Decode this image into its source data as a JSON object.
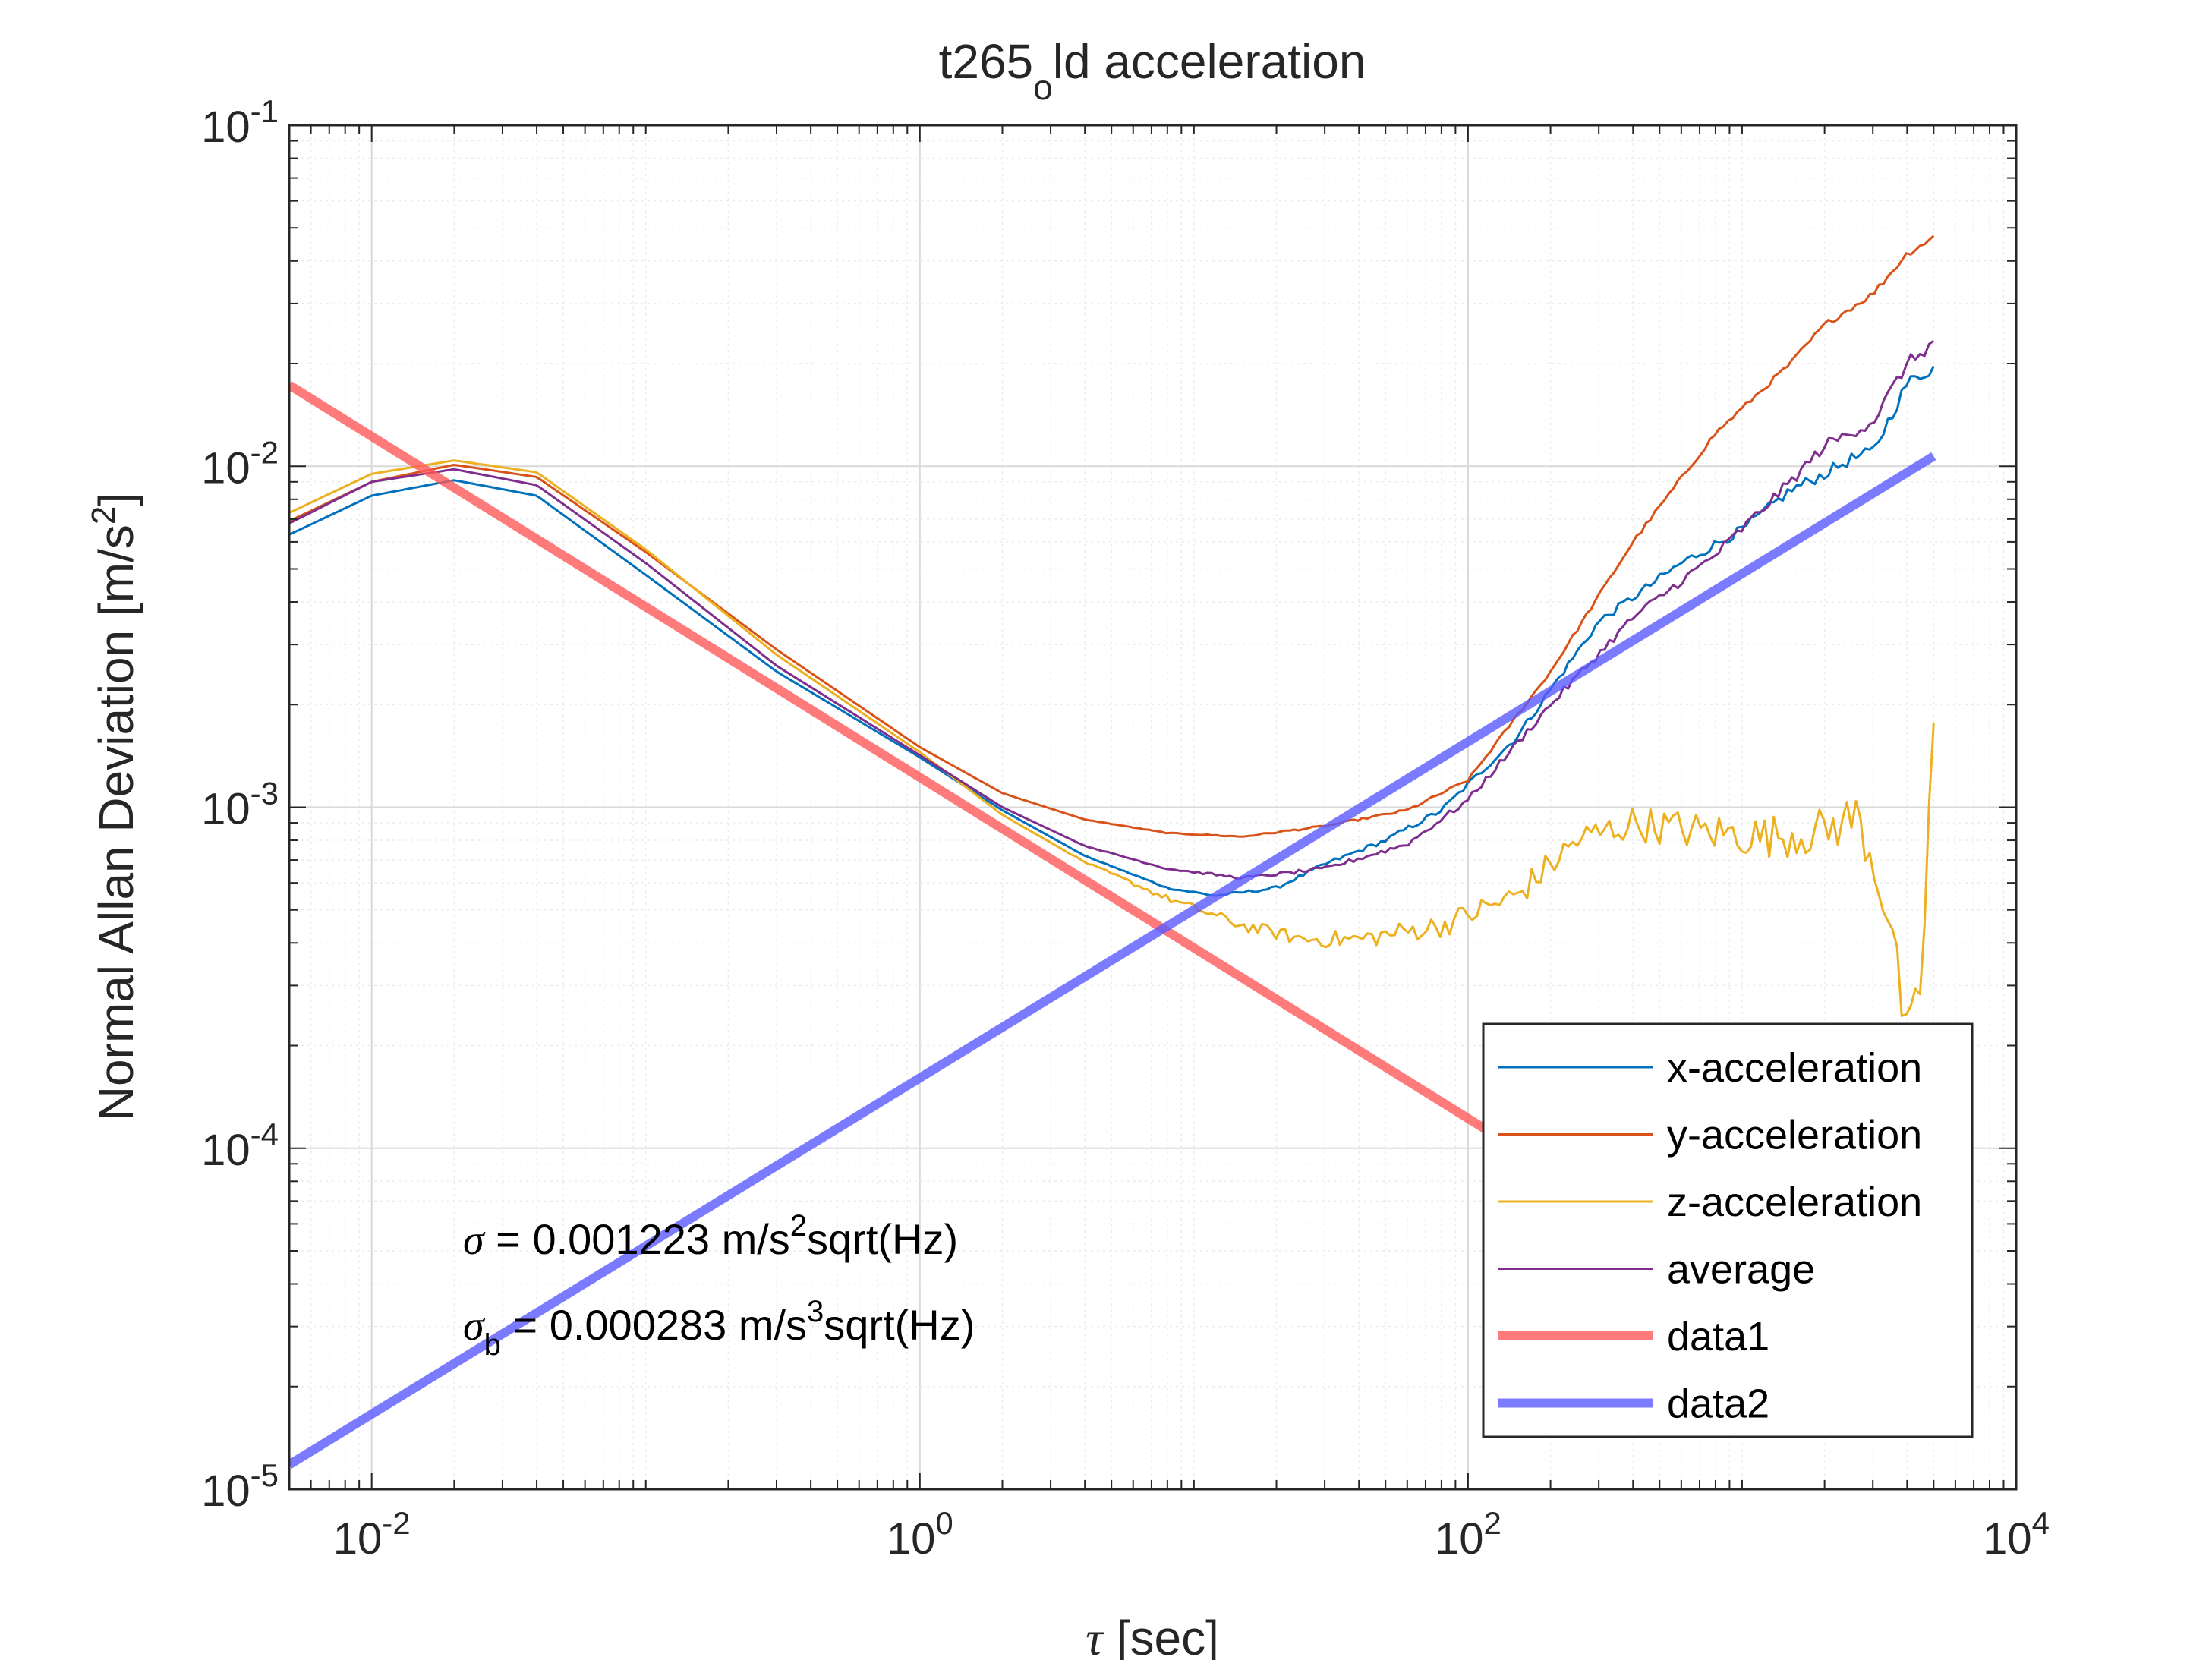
{
  "chart_data": {
    "type": "line",
    "title_parts": {
      "main": "t265",
      "sub": "o",
      "rest": "ld acceleration"
    },
    "xlabel": {
      "symbol": "τ",
      "unit": " [sec]"
    },
    "ylabel": {
      "text": "Normal Allan Deviation [m/s",
      "sup": "2",
      "close": "]"
    },
    "x_scale": "log",
    "y_scale": "log",
    "xlim": [
      0.005,
      10000
    ],
    "ylim": [
      1e-05,
      0.1
    ],
    "grid": true,
    "minor_grid": true,
    "legend_placement": "bottom-right",
    "x_ticks": [
      {
        "value": 0.01,
        "base": "10",
        "exp": "-2"
      },
      {
        "value": 1,
        "base": "10",
        "exp": "0"
      },
      {
        "value": 100,
        "base": "10",
        "exp": "2"
      },
      {
        "value": 10000,
        "base": "10",
        "exp": "4"
      }
    ],
    "y_ticks": [
      {
        "value": 0.1,
        "base": "10",
        "exp": "-1"
      },
      {
        "value": 0.01,
        "base": "10",
        "exp": "-2"
      },
      {
        "value": 0.001,
        "base": "10",
        "exp": "-3"
      },
      {
        "value": 0.0001,
        "base": "10",
        "exp": "-4"
      },
      {
        "value": 1e-05,
        "base": "10",
        "exp": "-5"
      }
    ],
    "series": [
      {
        "name": "x-acceleration",
        "color": "#0072BD",
        "width": 3,
        "opacity": 1,
        "x": [
          0.005,
          0.01,
          0.02,
          0.04,
          0.1,
          0.3,
          1,
          2,
          4,
          8,
          12,
          20,
          30,
          50,
          80,
          150,
          300,
          600,
          1000,
          1500,
          2000,
          2500,
          3000,
          4000,
          5000
        ],
        "y": [
          0.0063,
          0.0082,
          0.0091,
          0.0082,
          0.0048,
          0.0025,
          0.0014,
          0.00098,
          0.00072,
          0.00058,
          0.00055,
          0.00058,
          0.00068,
          0.0008,
          0.00098,
          0.0016,
          0.0035,
          0.0052,
          0.0065,
          0.0085,
          0.0095,
          0.0105,
          0.011,
          0.0175,
          0.0195
        ],
        "jitter": 0.02
      },
      {
        "name": "y-acceleration",
        "color": "#D95319",
        "width": 3,
        "opacity": 1,
        "x": [
          0.005,
          0.01,
          0.02,
          0.04,
          0.1,
          0.3,
          1,
          2,
          4,
          8,
          15,
          30,
          60,
          100,
          200,
          400,
          800,
          1500,
          2000,
          3000,
          4000,
          5000
        ],
        "y": [
          0.0069,
          0.009,
          0.0101,
          0.0093,
          0.0056,
          0.0029,
          0.0015,
          0.0011,
          0.00092,
          0.00084,
          0.00082,
          0.00088,
          0.00098,
          0.0012,
          0.0025,
          0.006,
          0.0125,
          0.02,
          0.026,
          0.032,
          0.042,
          0.047
        ],
        "jitter": 0.01
      },
      {
        "name": "z-acceleration",
        "color": "#EDB120",
        "width": 3,
        "opacity": 1,
        "x": [
          0.005,
          0.01,
          0.02,
          0.04,
          0.1,
          0.3,
          1,
          2,
          4,
          8,
          15,
          25,
          40,
          80,
          150,
          250,
          400,
          700,
          1200,
          2000,
          2600,
          3000,
          3500,
          4000,
          4500,
          5000
        ],
        "y": [
          0.0073,
          0.0095,
          0.0104,
          0.0096,
          0.0057,
          0.0028,
          0.00145,
          0.00095,
          0.00069,
          0.00054,
          0.00045,
          0.00041,
          0.00041,
          0.00045,
          0.00055,
          0.0008,
          0.0009,
          0.00085,
          0.00082,
          0.00085,
          0.00095,
          0.0007,
          0.00045,
          0.0002,
          0.0003,
          0.0018
        ],
        "jitter": 0.08
      },
      {
        "name": "average",
        "color": "#7E2F8E",
        "width": 3,
        "opacity": 1,
        "x": [
          0.005,
          0.01,
          0.02,
          0.04,
          0.1,
          0.3,
          1,
          2,
          4,
          8,
          15,
          30,
          60,
          100,
          200,
          400,
          800,
          1500,
          2000,
          3000,
          4000,
          5000
        ],
        "y": [
          0.0068,
          0.009,
          0.0098,
          0.0088,
          0.0052,
          0.0026,
          0.00142,
          0.001,
          0.00077,
          0.00066,
          0.00062,
          0.00066,
          0.00078,
          0.00105,
          0.002,
          0.0036,
          0.0055,
          0.009,
          0.0115,
          0.0135,
          0.02,
          0.023
        ],
        "jitter": 0.02
      },
      {
        "name": "data1",
        "color": "#FF5A5A",
        "width": 12,
        "opacity": 0.8,
        "x": [
          0.005,
          5000
        ],
        "y": [
          0.0173,
          1.73e-05
        ],
        "jitter": 0
      },
      {
        "name": "data2",
        "color": "#5A5AFF",
        "width": 12,
        "opacity": 0.8,
        "x": [
          0.005,
          5000
        ],
        "y": [
          1.18e-05,
          0.0107
        ],
        "jitter": 0
      }
    ],
    "annotations": [
      {
        "symbol": "σ",
        "sub": "",
        "value_text": " = 0.001223 m/s",
        "sup": "2",
        "tail": "sqrt(Hz)"
      },
      {
        "symbol": "σ",
        "sub": "b",
        "value_text": " = 0.000283 m/s",
        "sup": "3",
        "tail": "sqrt(Hz)"
      }
    ]
  }
}
